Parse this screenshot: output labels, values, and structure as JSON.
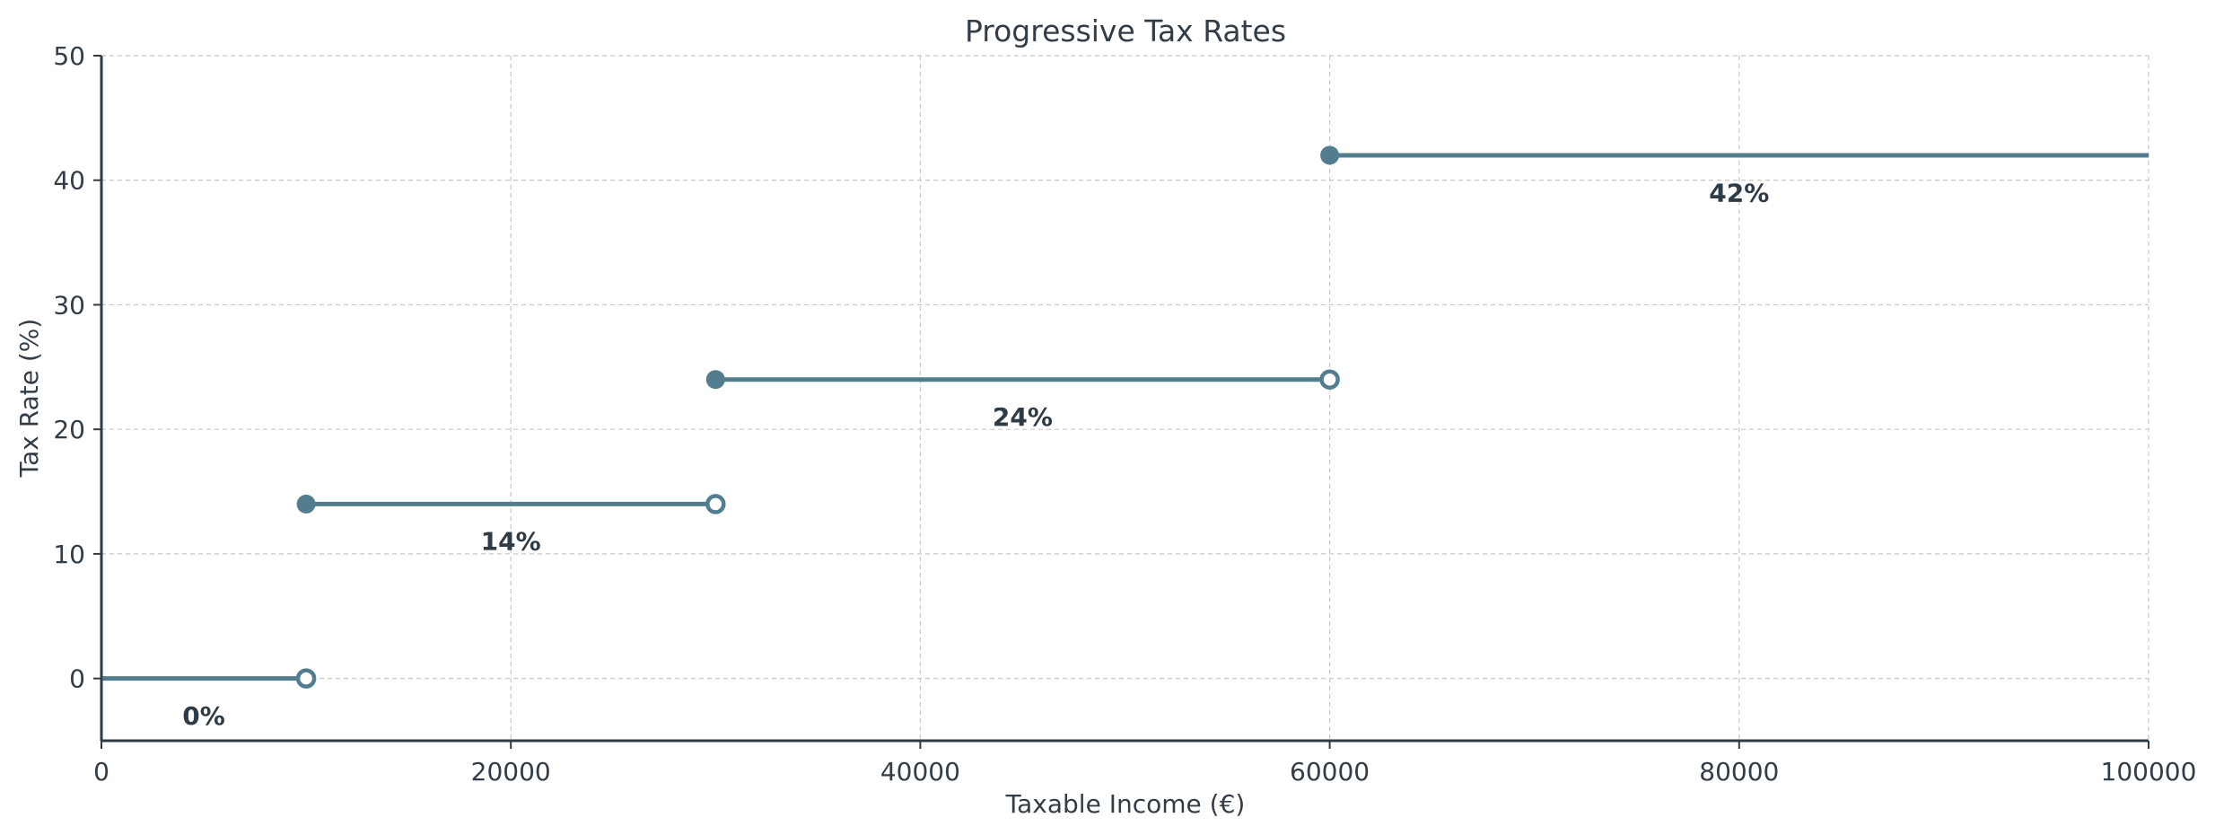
{
  "chart_data": {
    "type": "line",
    "title": "Progressive Tax Rates",
    "xlabel": "Taxable Income (€)",
    "ylabel": "Tax Rate (%)",
    "xlim": [
      0,
      100000
    ],
    "ylim": [
      -5,
      50
    ],
    "x_ticks": [
      0,
      20000,
      40000,
      60000,
      80000,
      100000
    ],
    "y_ticks": [
      0,
      10,
      20,
      30,
      40,
      50
    ],
    "grid": true,
    "line_color": "#527d8f",
    "brackets": [
      {
        "x_start": 0,
        "x_end": 10000,
        "rate": 0,
        "label": "0%",
        "start_marker": "none",
        "end_marker": "open"
      },
      {
        "x_start": 10000,
        "x_end": 30000,
        "rate": 14,
        "label": "14%",
        "start_marker": "filled",
        "end_marker": "open"
      },
      {
        "x_start": 30000,
        "x_end": 60000,
        "rate": 24,
        "label": "24%",
        "start_marker": "filled",
        "end_marker": "open"
      },
      {
        "x_start": 60000,
        "x_end": 100000,
        "rate": 42,
        "label": "42%",
        "start_marker": "filled",
        "end_marker": "none"
      }
    ]
  }
}
